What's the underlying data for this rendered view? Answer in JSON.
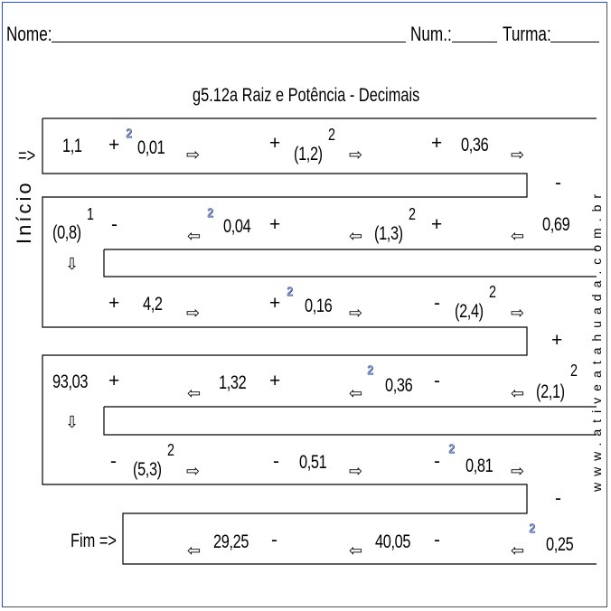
{
  "header": {
    "name_label": "Nome:",
    "num_label": "Num.:",
    "class_label": "Turma:"
  },
  "title": "g5.12a Raiz e Potência - Decimais",
  "start_label": "Início",
  "start_arrow": "=>",
  "end_label": "Fim =>",
  "side_text": "www.ativeatahuada.com.br",
  "rows": {
    "r1": {
      "v1": "1,1",
      "op1": "+",
      "v2": "0,01",
      "op2": "+",
      "v3": "(1,2)",
      "e3": "2",
      "op3": "+",
      "v4": "0,36"
    },
    "r2": {
      "v1": "(0,8)",
      "e1": "1",
      "op1": "-",
      "v2": "0,04",
      "op2": "+",
      "v3": "(1,3)",
      "e3": "2",
      "op3": "+",
      "v4": "0,69"
    },
    "r3": {
      "op1": "+",
      "v1": "4,2",
      "op2": "+",
      "v2": "0,16",
      "op3": "-",
      "v3": "(2,4)",
      "e3": "2"
    },
    "r4": {
      "v1": "93,03",
      "op1": "+",
      "v2": "1,32",
      "op2": "+",
      "v3": "0,36",
      "op3": "-",
      "v4": "(2,1)",
      "e4": "2"
    },
    "r5": {
      "op1": "-",
      "v1": "(5,3)",
      "e1": "2",
      "op2": "-",
      "v2": "0,51",
      "op3": "-",
      "v3": "0,81"
    },
    "r6": {
      "v1": "29,25",
      "op1": "-",
      "v2": "40,05",
      "op2": "-",
      "v3": "0,25"
    }
  },
  "connectors": {
    "c1": "-",
    "c2": "+",
    "c3": "-"
  },
  "radix_symbol": "2",
  "arrow_right": "⇨",
  "arrow_left": "⇦",
  "arrow_down": "⇩"
}
